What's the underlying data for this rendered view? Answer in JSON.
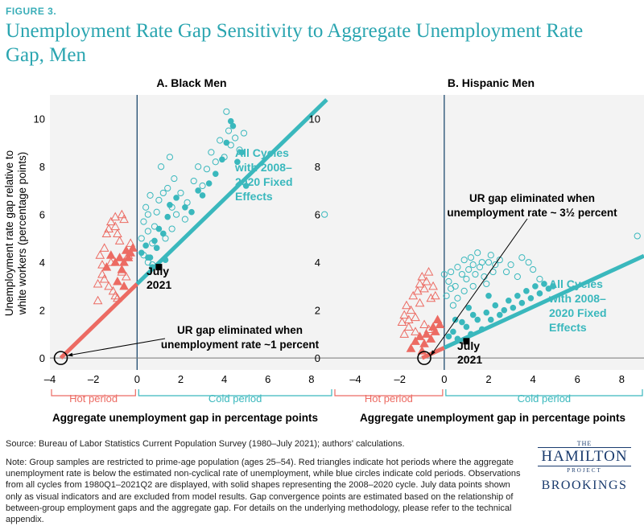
{
  "figure_label": "FIGURE 3.",
  "title": "Unemployment Rate Gap Sensitivity to Aggregate Unemployment Rate Gap, Men",
  "source": "Source: Bureau of Labor Statistics Current Population Survey (1980–July 2021); authors' calculations.",
  "note": "Note: Group samples are restricted to prime-age population (ages 25–54). Red triangles indicate hot periods where the aggregate unemployment rate is below the estimated non-cyclical rate of unemployment, while blue circles indicate cold periods. Observations from all cycles from 1980Q1–2021Q2 are displayed, with solid shapes representing the 2008–2020 cycle. July data points shown only as visual indicators and are excluded from model results. Gap convergence points are estimated based on the relationship of between-group employment gaps and the aggregate gap. For details on the underlying methodology, please refer to the technical appendix.",
  "logo": {
    "the": "THE",
    "hamilton": "HAMILTON",
    "project": "PROJECT",
    "brookings": "BROOKINGS"
  },
  "colors": {
    "hot": "#ec6b63",
    "cold": "#3ab8bd",
    "title": "#2aa5b0",
    "axis": "#1e4a6e"
  },
  "chart_data": [
    {
      "type": "scatter",
      "title": "A. Black Men",
      "xlabel": "Aggregate unemployment gap in percentage points",
      "ylabel": "Unemployment rate gap relative to white workers (percentage points)",
      "xlim": [
        -4,
        9
      ],
      "ylim": [
        -0.5,
        11
      ],
      "xticks": [
        -4,
        -2,
        0,
        2,
        4,
        6,
        8
      ],
      "yticks": [
        0,
        2,
        4,
        6,
        8,
        10
      ],
      "xtick_labels": [
        "–4",
        "–2",
        "0",
        "2",
        "4",
        "6",
        "8"
      ],
      "hot_label": "Hot period",
      "cold_label": "Cold period",
      "fit_line": {
        "x": [
          -3.5,
          8.7
        ],
        "y": [
          0,
          10.8
        ],
        "label": [
          "All Cycles",
          "with 2008–",
          "2020 Fixed",
          "Effects"
        ]
      },
      "convergence": {
        "x": -3.5,
        "y": 0,
        "text": [
          "UR gap eliminated when",
          "unemployment rate ~1 percent"
        ]
      },
      "july": {
        "x": 1.0,
        "y": 3.8,
        "label": [
          "July",
          "2021"
        ]
      },
      "series": [
        {
          "name": "Hot period",
          "marker": "triangle",
          "filled": false,
          "points": [
            [
              -1.8,
              2.4
            ],
            [
              -1.8,
              3.1
            ],
            [
              -1.6,
              3.5
            ],
            [
              -1.6,
              3.9
            ],
            [
              -1.5,
              4.6
            ],
            [
              -1.4,
              5.2
            ],
            [
              -1.3,
              5.4
            ],
            [
              -1.2,
              5.7
            ],
            [
              -1.0,
              5.9
            ],
            [
              -1.0,
              5.5
            ],
            [
              -0.9,
              5.2
            ],
            [
              -0.7,
              6.0
            ],
            [
              -0.6,
              5.8
            ],
            [
              -1.5,
              3.3
            ],
            [
              -1.3,
              3.0
            ],
            [
              -1.1,
              2.8
            ],
            [
              -1.0,
              2.6
            ],
            [
              -0.9,
              2.5
            ],
            [
              -0.7,
              3.6
            ],
            [
              -0.5,
              3.4
            ],
            [
              -0.4,
              4.3
            ],
            [
              -0.3,
              4.8
            ],
            [
              -1.2,
              4.0
            ],
            [
              -0.8,
              4.9
            ],
            [
              -1.7,
              4.3
            ]
          ]
        },
        {
          "name": "Hot period 2008–2020",
          "marker": "triangle",
          "filled": true,
          "points": [
            [
              -1.4,
              3.8
            ],
            [
              -1.2,
              4.3
            ],
            [
              -1.0,
              4.0
            ],
            [
              -0.8,
              4.2
            ],
            [
              -0.7,
              3.7
            ],
            [
              -0.6,
              4.0
            ],
            [
              -0.5,
              4.5
            ],
            [
              -0.4,
              4.2
            ],
            [
              -0.3,
              4.4
            ],
            [
              -0.9,
              3.2
            ],
            [
              -0.6,
              3.0
            ],
            [
              -0.2,
              4.6
            ]
          ]
        },
        {
          "name": "Cold period",
          "marker": "circle",
          "filled": false,
          "points": [
            [
              0.2,
              5.0
            ],
            [
              0.3,
              5.7
            ],
            [
              0.4,
              6.3
            ],
            [
              0.5,
              5.3
            ],
            [
              0.6,
              6.8
            ],
            [
              0.7,
              4.8
            ],
            [
              0.8,
              5.5
            ],
            [
              0.9,
              6.1
            ],
            [
              1.0,
              6.6
            ],
            [
              1.1,
              8.0
            ],
            [
              1.2,
              6.9
            ],
            [
              1.3,
              5.0
            ],
            [
              1.4,
              7.1
            ],
            [
              1.5,
              8.4
            ],
            [
              1.6,
              6.3
            ],
            [
              1.7,
              7.5
            ],
            [
              1.8,
              6.0
            ],
            [
              2.0,
              6.9
            ],
            [
              2.2,
              5.8
            ],
            [
              2.3,
              6.5
            ],
            [
              2.6,
              7.4
            ],
            [
              2.8,
              8.0
            ],
            [
              3.0,
              7.2
            ],
            [
              3.2,
              7.9
            ],
            [
              3.4,
              8.6
            ],
            [
              3.6,
              8.2
            ],
            [
              3.8,
              9.1
            ],
            [
              4.0,
              8.4
            ],
            [
              4.1,
              10.3
            ],
            [
              4.2,
              9.5
            ],
            [
              4.3,
              8.9
            ],
            [
              4.5,
              9.2
            ],
            [
              4.7,
              8.7
            ],
            [
              4.9,
              9.4
            ],
            [
              0.3,
              4.3
            ],
            [
              0.5,
              4.0
            ],
            [
              0.7,
              3.9
            ],
            [
              1.6,
              5.4
            ],
            [
              0.5,
              6.0
            ],
            [
              8.6,
              6.0
            ]
          ]
        },
        {
          "name": "Cold period 2008–2020",
          "marker": "circle",
          "filled": true,
          "points": [
            [
              0.2,
              4.4
            ],
            [
              0.4,
              4.7
            ],
            [
              0.6,
              4.2
            ],
            [
              0.8,
              4.9
            ],
            [
              1.0,
              5.4
            ],
            [
              1.2,
              5.2
            ],
            [
              1.4,
              5.9
            ],
            [
              1.5,
              6.4
            ],
            [
              1.8,
              6.7
            ],
            [
              2.2,
              6.3
            ],
            [
              2.5,
              6.1
            ],
            [
              2.8,
              7.0
            ],
            [
              3.0,
              6.8
            ],
            [
              3.3,
              7.3
            ],
            [
              3.6,
              7.7
            ],
            [
              3.9,
              8.3
            ],
            [
              4.1,
              9.0
            ],
            [
              4.3,
              9.9
            ],
            [
              4.4,
              9.7
            ],
            [
              4.6,
              8.2
            ],
            [
              4.8,
              8.6
            ],
            [
              5.0,
              7.2
            ],
            [
              0.9,
              4.6
            ],
            [
              1.3,
              4.1
            ],
            [
              0.5,
              4.2
            ],
            [
              0.7,
              3.8
            ]
          ]
        }
      ]
    },
    {
      "type": "scatter",
      "title": "B. Hispanic Men",
      "xlabel": "Aggregate unemployment gap in percentage points",
      "ylabel": "",
      "xlim": [
        -5,
        9
      ],
      "ylim": [
        -0.5,
        11
      ],
      "xticks": [
        -4,
        -2,
        0,
        2,
        4,
        6,
        8
      ],
      "yticks": [
        0,
        2,
        4,
        6,
        8,
        10
      ],
      "xtick_labels": [
        "–4",
        "–2",
        "0",
        "2",
        "4",
        "6",
        "8"
      ],
      "hot_label": "Hot period",
      "cold_label": "Cold period",
      "fit_line": {
        "x": [
          -1.0,
          9.3
        ],
        "y": [
          0,
          4.4
        ],
        "label": [
          "All Cycles",
          "with 2008–",
          "2020 Fixed",
          "Effects"
        ]
      },
      "convergence": {
        "x": -0.9,
        "y": 0,
        "text": [
          "UR gap eliminated when",
          "unemployment rate ~ 3½ percent"
        ]
      },
      "july": {
        "x": 1.0,
        "y": 0.7,
        "label": [
          "July",
          "2021"
        ]
      },
      "series": [
        {
          "name": "Hot period",
          "marker": "triangle",
          "filled": false,
          "points": [
            [
              -1.9,
              1.5
            ],
            [
              -1.8,
              1.8
            ],
            [
              -1.7,
              2.2
            ],
            [
              -1.6,
              1.6
            ],
            [
              -1.5,
              2.0
            ],
            [
              -1.4,
              2.6
            ],
            [
              -1.3,
              1.7
            ],
            [
              -1.2,
              2.8
            ],
            [
              -1.1,
              3.1
            ],
            [
              -1.0,
              3.4
            ],
            [
              -0.9,
              2.9
            ],
            [
              -0.8,
              3.2
            ],
            [
              -0.7,
              3.6
            ],
            [
              -0.6,
              2.5
            ],
            [
              -1.6,
              1.3
            ],
            [
              -1.3,
              1.1
            ],
            [
              -1.1,
              2.3
            ],
            [
              -0.9,
              1.4
            ],
            [
              -0.5,
              3.0
            ],
            [
              -0.4,
              2.6
            ],
            [
              -1.8,
              1.0
            ],
            [
              -0.7,
              1.2
            ]
          ]
        },
        {
          "name": "Hot period 2008–2020",
          "marker": "triangle",
          "filled": true,
          "points": [
            [
              -1.5,
              0.4
            ],
            [
              -1.3,
              0.7
            ],
            [
              -1.1,
              0.9
            ],
            [
              -0.9,
              0.6
            ],
            [
              -0.8,
              1.0
            ],
            [
              -0.6,
              0.8
            ],
            [
              -0.5,
              1.3
            ],
            [
              -0.4,
              1.1
            ],
            [
              -0.3,
              1.6
            ],
            [
              -0.2,
              1.4
            ],
            [
              -1.0,
              0.3
            ]
          ]
        },
        {
          "name": "Cold period",
          "marker": "circle",
          "filled": false,
          "points": [
            [
              0.0,
              3.5
            ],
            [
              0.2,
              3.2
            ],
            [
              0.3,
              3.6
            ],
            [
              0.5,
              3.0
            ],
            [
              0.6,
              3.8
            ],
            [
              0.8,
              3.5
            ],
            [
              0.9,
              4.1
            ],
            [
              1.0,
              3.3
            ],
            [
              1.1,
              3.7
            ],
            [
              1.2,
              4.2
            ],
            [
              1.3,
              3.9
            ],
            [
              1.4,
              3.5
            ],
            [
              1.5,
              4.4
            ],
            [
              1.6,
              3.8
            ],
            [
              1.7,
              4.0
            ],
            [
              1.8,
              3.4
            ],
            [
              1.9,
              3.1
            ],
            [
              2.0,
              4.0
            ],
            [
              2.1,
              4.3
            ],
            [
              2.2,
              3.6
            ],
            [
              2.3,
              3.9
            ],
            [
              2.5,
              4.1
            ],
            [
              2.8,
              3.6
            ],
            [
              3.0,
              3.9
            ],
            [
              3.3,
              3.4
            ],
            [
              3.5,
              4.2
            ],
            [
              3.8,
              4.0
            ],
            [
              4.0,
              3.7
            ],
            [
              4.3,
              3.3
            ],
            [
              0.1,
              2.6
            ],
            [
              0.3,
              2.9
            ],
            [
              0.4,
              2.2
            ],
            [
              0.6,
              2.5
            ],
            [
              0.9,
              2.8
            ],
            [
              1.3,
              3.0
            ],
            [
              8.7,
              5.1
            ]
          ]
        },
        {
          "name": "Cold period 2008–2020",
          "marker": "circle",
          "filled": true,
          "points": [
            [
              0.2,
              0.9
            ],
            [
              0.4,
              1.1
            ],
            [
              0.6,
              0.8
            ],
            [
              0.8,
              1.5
            ],
            [
              1.0,
              1.3
            ],
            [
              1.2,
              1.0
            ],
            [
              1.3,
              1.8
            ],
            [
              1.5,
              1.6
            ],
            [
              1.7,
              1.2
            ],
            [
              1.9,
              1.9
            ],
            [
              2.1,
              1.6
            ],
            [
              2.3,
              2.2
            ],
            [
              2.5,
              1.8
            ],
            [
              2.7,
              2.0
            ],
            [
              2.9,
              2.4
            ],
            [
              3.1,
              2.1
            ],
            [
              3.3,
              2.6
            ],
            [
              3.5,
              2.3
            ],
            [
              3.7,
              2.8
            ],
            [
              3.9,
              2.5
            ],
            [
              4.1,
              3.0
            ],
            [
              4.3,
              2.7
            ],
            [
              4.5,
              3.1
            ],
            [
              4.7,
              2.9
            ],
            [
              4.9,
              3.0
            ],
            [
              2.0,
              2.6
            ],
            [
              1.1,
              2.1
            ],
            [
              0.5,
              1.6
            ]
          ]
        }
      ]
    }
  ]
}
